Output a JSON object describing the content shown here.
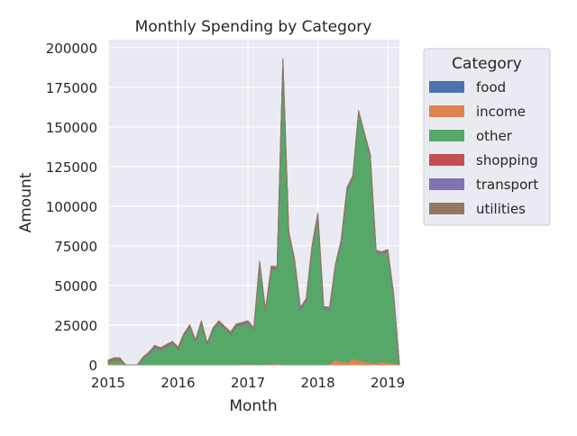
{
  "chart_data": {
    "type": "area",
    "stacked": true,
    "title": "Monthly Spending by Category",
    "xlabel": "Month",
    "ylabel": "Amount",
    "xlim": [
      "2015-01",
      "2019-03"
    ],
    "ylim": [
      0,
      205000
    ],
    "x_ticks": [
      "2015",
      "2016",
      "2017",
      "2018",
      "2019"
    ],
    "y_ticks": [
      "0",
      "25000",
      "50000",
      "75000",
      "100000",
      "125000",
      "150000",
      "175000",
      "200000"
    ],
    "grid": true,
    "legend": {
      "title": "Category",
      "placement": "outside-right"
    },
    "months": [
      "2015-01",
      "2015-02",
      "2015-03",
      "2015-04",
      "2015-05",
      "2015-06",
      "2015-07",
      "2015-08",
      "2015-09",
      "2015-10",
      "2015-11",
      "2015-12",
      "2016-01",
      "2016-02",
      "2016-03",
      "2016-04",
      "2016-05",
      "2016-06",
      "2016-07",
      "2016-08",
      "2016-09",
      "2016-10",
      "2016-11",
      "2016-12",
      "2017-01",
      "2017-02",
      "2017-03",
      "2017-04",
      "2017-05",
      "2017-06",
      "2017-07",
      "2017-08",
      "2017-09",
      "2017-10",
      "2017-11",
      "2017-12",
      "2018-01",
      "2018-02",
      "2018-03",
      "2018-04",
      "2018-05",
      "2018-06",
      "2018-07",
      "2018-08",
      "2018-09",
      "2018-10",
      "2018-11",
      "2018-12",
      "2019-01",
      "2019-02",
      "2019-03"
    ],
    "series": [
      {
        "name": "food",
        "color": "#4c72b0",
        "values": [
          0,
          0,
          0,
          0,
          0,
          0,
          0,
          0,
          0,
          0,
          0,
          0,
          0,
          0,
          0,
          0,
          0,
          0,
          0,
          0,
          0,
          0,
          0,
          0,
          0,
          0,
          0,
          0,
          0,
          0,
          0,
          0,
          0,
          0,
          0,
          0,
          0,
          0,
          0,
          0,
          0,
          0,
          0,
          0,
          0,
          0,
          0,
          0,
          0,
          0,
          0
        ]
      },
      {
        "name": "income",
        "color": "#dd8452",
        "values": [
          500,
          500,
          500,
          0,
          0,
          0,
          0,
          0,
          0,
          0,
          0,
          0,
          0,
          0,
          0,
          0,
          0,
          0,
          0,
          0,
          0,
          0,
          0,
          500,
          500,
          500,
          0,
          500,
          500,
          1000,
          0,
          0,
          0,
          0,
          0,
          0,
          0,
          0,
          500,
          3500,
          2000,
          1500,
          4000,
          3000,
          2000,
          1500,
          1000,
          2000,
          1500,
          1000,
          0
        ]
      },
      {
        "name": "other",
        "color": "#55a868",
        "values": [
          1000,
          2500,
          2500,
          0,
          0,
          0,
          4000,
          7000,
          11000,
          9500,
          11500,
          13500,
          10000,
          18500,
          24000,
          14500,
          26500,
          12500,
          22000,
          26500,
          23000,
          19500,
          24500,
          25000,
          26000,
          21500,
          63500,
          33000,
          60000,
          59500,
          190000,
          82500,
          65000,
          34500,
          39500,
          73500,
          93500,
          35000,
          34500,
          58500,
          75000,
          108000,
          114000,
          156000,
          143000,
          130000,
          70000,
          68000,
          70000,
          43000,
          0
        ]
      },
      {
        "name": "shopping",
        "color": "#c44e52",
        "values": [
          500,
          500,
          500,
          0,
          0,
          0,
          200,
          300,
          300,
          300,
          300,
          300,
          300,
          300,
          300,
          300,
          300,
          300,
          300,
          300,
          300,
          300,
          300,
          300,
          300,
          300,
          300,
          300,
          300,
          300,
          500,
          300,
          300,
          300,
          300,
          300,
          300,
          300,
          300,
          300,
          300,
          300,
          300,
          300,
          300,
          300,
          300,
          300,
          300,
          300,
          0
        ]
      },
      {
        "name": "transport",
        "color": "#8172b3",
        "values": [
          500,
          500,
          500,
          0,
          0,
          0,
          300,
          300,
          500,
          500,
          500,
          500,
          500,
          500,
          500,
          500,
          500,
          500,
          500,
          500,
          500,
          500,
          500,
          500,
          500,
          500,
          1000,
          500,
          1000,
          500,
          2000,
          1000,
          1000,
          1000,
          1500,
          1000,
          1500,
          1000,
          500,
          500,
          1000,
          1500,
          500,
          500,
          500,
          500,
          500,
          500,
          500,
          500,
          0
        ]
      },
      {
        "name": "utilities",
        "color": "#937860",
        "values": [
          500,
          500,
          500,
          0,
          0,
          0,
          500,
          500,
          500,
          500,
          500,
          500,
          500,
          500,
          500,
          500,
          500,
          500,
          500,
          500,
          500,
          500,
          500,
          500,
          500,
          500,
          500,
          500,
          500,
          500,
          500,
          500,
          500,
          500,
          500,
          500,
          500,
          500,
          500,
          500,
          500,
          500,
          500,
          500,
          500,
          500,
          500,
          500,
          500,
          500,
          0
        ]
      }
    ]
  }
}
